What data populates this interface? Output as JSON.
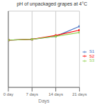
{
  "chart_data": {
    "type": "line",
    "title": "pH of unpackaged grapes at 4°C",
    "xlabel": "Days",
    "x": [
      0,
      7,
      14,
      21
    ],
    "series": [
      {
        "name": "S1",
        "color": "#4472C4",
        "values": [
          3.62,
          3.63,
          3.67,
          3.8
        ]
      },
      {
        "name": "S2",
        "color": "#FF0000",
        "values": [
          3.62,
          3.63,
          3.68,
          3.75
        ]
      },
      {
        "name": "S3",
        "color": "#92D050",
        "values": [
          3.62,
          3.63,
          3.67,
          3.72
        ]
      }
    ],
    "xlim": [
      0,
      21
    ],
    "xticks": [
      {
        "value": 0,
        "label": "0 day"
      },
      {
        "value": 7,
        "label": "7 days"
      },
      {
        "value": 14,
        "label": "14 days"
      },
      {
        "value": 21,
        "label": "21 days"
      }
    ],
    "ylim": [
      3.0,
      4.0
    ],
    "yticks": [
      3.0,
      3.2,
      3.4,
      3.6,
      3.8,
      4.0
    ],
    "grid": true,
    "legend": "right",
    "tick_labels": "x",
    "marker": "square"
  }
}
